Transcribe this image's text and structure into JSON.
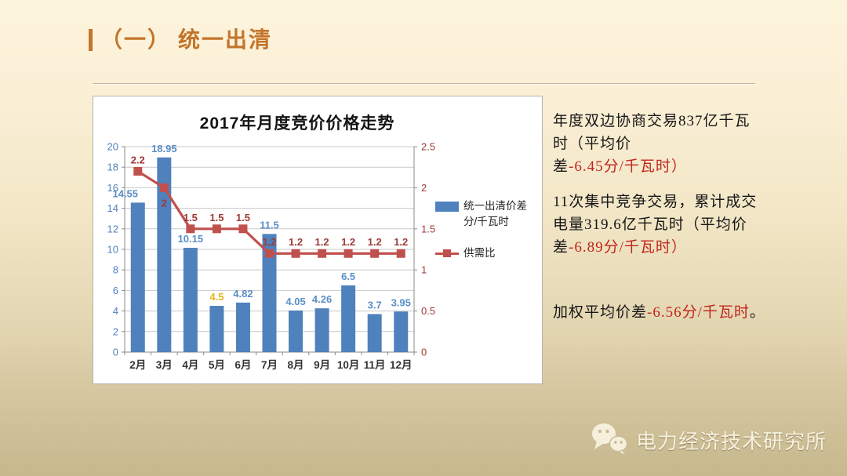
{
  "slide": {
    "section_title": "（一） 统一出清",
    "footer_brand": "电力经济技术研究所"
  },
  "palette": {
    "title_orange": "#c2742a",
    "note_dark": "#161616",
    "note_red": "#c1251d",
    "footer_text": "#f7f1de"
  },
  "chart_data": {
    "type": "combo-bar-line",
    "title": "2017年月度竞价价格走势",
    "categories": [
      "2月",
      "3月",
      "4月",
      "5月",
      "6月",
      "7月",
      "8月",
      "9月",
      "10月",
      "11月",
      "12月"
    ],
    "series": [
      {
        "name": "统一出清价差分/千瓦时",
        "type": "bar",
        "axis": "left",
        "color": "#4f81bd",
        "values": [
          14.55,
          18.95,
          10.15,
          4.5,
          4.82,
          11.5,
          4.05,
          4.26,
          6.5,
          3.7,
          3.95
        ],
        "label_color": "#5a8fc7",
        "label_color_overrides": [
          {
            "index": 3,
            "color": "#e8b41f"
          }
        ]
      },
      {
        "name": "供需比",
        "type": "line",
        "axis": "right",
        "color": "#c0504d",
        "values": [
          2.2,
          2,
          1.5,
          1.5,
          1.5,
          1.2,
          1.2,
          1.2,
          1.2,
          1.2,
          1.2
        ],
        "label_color": "#9e3a38"
      }
    ],
    "left_axis": {
      "min": 0,
      "max": 20,
      "step": 2,
      "label_color": "#4f81bd"
    },
    "right_axis": {
      "min": 0,
      "max": 2.5,
      "step": 0.5,
      "label_color": "#9e3a38"
    },
    "x_axis": {
      "label_color": "#333333"
    },
    "grid": true,
    "legend_position": "right"
  },
  "notes": [
    {
      "segments": [
        {
          "text": "年度双边协商交易837亿千瓦时（平均价差",
          "color": "note_dark"
        },
        {
          "text": "-6.45分/千瓦时）",
          "color": "note_red"
        }
      ]
    },
    {
      "segments": [
        {
          "text": "11次集中竞争交易，累计成交电量319.6亿千瓦时（平均价差",
          "color": "note_dark"
        },
        {
          "text": "-6.89分/千瓦时）",
          "color": "note_red"
        }
      ]
    },
    {
      "segments": [
        {
          "text": "加权平均价差",
          "color": "note_dark"
        },
        {
          "text": "-6.56分/千瓦时",
          "color": "note_red"
        },
        {
          "text": "。",
          "color": "note_dark"
        }
      ]
    }
  ]
}
